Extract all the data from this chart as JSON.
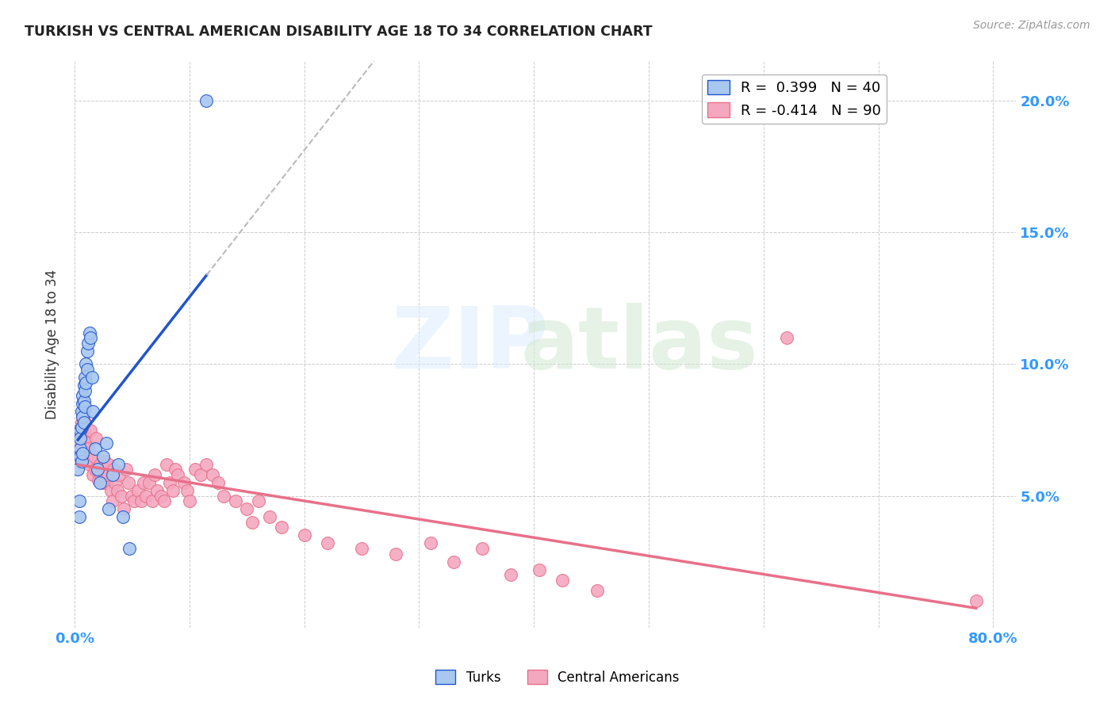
{
  "title": "TURKISH VS CENTRAL AMERICAN DISABILITY AGE 18 TO 34 CORRELATION CHART",
  "source": "Source: ZipAtlas.com",
  "ylabel": "Disability Age 18 to 34",
  "xlim": [
    0.0,
    0.82
  ],
  "ylim": [
    0.0,
    0.215
  ],
  "legend_blue_r": "R =  0.399",
  "legend_blue_n": "N = 40",
  "legend_pink_r": "R = -0.414",
  "legend_pink_n": "N = 90",
  "blue_color": "#A8C8F0",
  "pink_color": "#F4A8C0",
  "blue_line_color": "#2255CC",
  "pink_line_color": "#E8708A",
  "dash_color": "#BBBBBB",
  "background_color": "#ffffff",
  "grid_color": "#cccccc",
  "turks_x": [
    0.003,
    0.004,
    0.004,
    0.005,
    0.005,
    0.005,
    0.005,
    0.006,
    0.006,
    0.006,
    0.007,
    0.007,
    0.007,
    0.007,
    0.008,
    0.008,
    0.008,
    0.009,
    0.009,
    0.009,
    0.01,
    0.01,
    0.011,
    0.011,
    0.012,
    0.013,
    0.014,
    0.015,
    0.016,
    0.018,
    0.02,
    0.022,
    0.025,
    0.028,
    0.03,
    0.033,
    0.038,
    0.042,
    0.048,
    0.115
  ],
  "turks_y": [
    0.06,
    0.048,
    0.042,
    0.068,
    0.075,
    0.072,
    0.065,
    0.082,
    0.076,
    0.063,
    0.088,
    0.085,
    0.08,
    0.066,
    0.092,
    0.086,
    0.078,
    0.095,
    0.09,
    0.084,
    0.1,
    0.093,
    0.105,
    0.098,
    0.108,
    0.112,
    0.11,
    0.095,
    0.082,
    0.068,
    0.06,
    0.055,
    0.065,
    0.07,
    0.045,
    0.058,
    0.062,
    0.042,
    0.03,
    0.2
  ],
  "central_x": [
    0.003,
    0.004,
    0.004,
    0.005,
    0.005,
    0.006,
    0.006,
    0.007,
    0.007,
    0.008,
    0.008,
    0.009,
    0.009,
    0.01,
    0.01,
    0.011,
    0.011,
    0.012,
    0.013,
    0.014,
    0.015,
    0.016,
    0.017,
    0.018,
    0.019,
    0.02,
    0.021,
    0.022,
    0.023,
    0.025,
    0.026,
    0.027,
    0.028,
    0.029,
    0.03,
    0.032,
    0.033,
    0.034,
    0.035,
    0.037,
    0.039,
    0.041,
    0.043,
    0.045,
    0.047,
    0.05,
    0.052,
    0.055,
    0.058,
    0.06,
    0.062,
    0.065,
    0.068,
    0.07,
    0.072,
    0.075,
    0.078,
    0.08,
    0.083,
    0.086,
    0.088,
    0.09,
    0.095,
    0.098,
    0.1,
    0.105,
    0.11,
    0.115,
    0.12,
    0.125,
    0.13,
    0.14,
    0.15,
    0.155,
    0.16,
    0.17,
    0.18,
    0.2,
    0.22,
    0.25,
    0.28,
    0.31,
    0.33,
    0.355,
    0.38,
    0.405,
    0.425,
    0.455,
    0.62,
    0.785
  ],
  "central_y": [
    0.075,
    0.07,
    0.065,
    0.073,
    0.068,
    0.078,
    0.074,
    0.08,
    0.076,
    0.082,
    0.075,
    0.07,
    0.078,
    0.068,
    0.072,
    0.065,
    0.07,
    0.068,
    0.062,
    0.075,
    0.063,
    0.058,
    0.065,
    0.06,
    0.072,
    0.06,
    0.056,
    0.062,
    0.058,
    0.055,
    0.063,
    0.06,
    0.055,
    0.058,
    0.062,
    0.052,
    0.048,
    0.06,
    0.055,
    0.052,
    0.058,
    0.05,
    0.045,
    0.06,
    0.055,
    0.05,
    0.048,
    0.052,
    0.048,
    0.055,
    0.05,
    0.055,
    0.048,
    0.058,
    0.052,
    0.05,
    0.048,
    0.062,
    0.055,
    0.052,
    0.06,
    0.058,
    0.055,
    0.052,
    0.048,
    0.06,
    0.058,
    0.062,
    0.058,
    0.055,
    0.05,
    0.048,
    0.045,
    0.04,
    0.048,
    0.042,
    0.038,
    0.035,
    0.032,
    0.03,
    0.028,
    0.032,
    0.025,
    0.03,
    0.02,
    0.022,
    0.018,
    0.014,
    0.11,
    0.01
  ]
}
